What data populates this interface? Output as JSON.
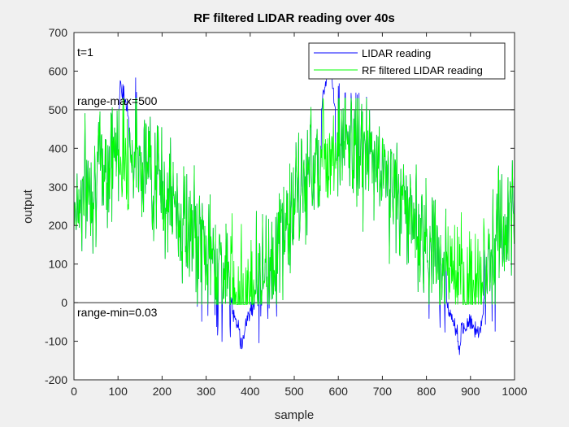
{
  "chart_data": {
    "type": "line",
    "title": "RF filtered LIDAR reading over 40s",
    "xlabel": "sample",
    "ylabel": "output",
    "xlim": [
      0,
      1000
    ],
    "ylim": [
      -200,
      700
    ],
    "xticks": [
      0,
      100,
      200,
      300,
      400,
      500,
      600,
      700,
      800,
      900,
      1000
    ],
    "yticks": [
      -200,
      -100,
      0,
      100,
      200,
      300,
      400,
      500,
      600,
      700
    ],
    "grid": false,
    "legend_position": "top-right",
    "annotations": {
      "time": "t=1",
      "range_max": "range-max=500",
      "range_min": "range-min=0.03"
    },
    "reference_lines": [
      500,
      0
    ],
    "series": [
      {
        "name": "LIDAR reading",
        "color": "#0000ff",
        "x": [
          0,
          50,
          100,
          105,
          110,
          150,
          200,
          250,
          300,
          340,
          360,
          375,
          380,
          390,
          400,
          450,
          500,
          550,
          575,
          580,
          600,
          650,
          700,
          750,
          800,
          830,
          850,
          870,
          875,
          880,
          900,
          920,
          950,
          1000
        ],
        "values": [
          250,
          330,
          410,
          585,
          545,
          420,
          300,
          200,
          120,
          60,
          -20,
          -60,
          -120,
          -50,
          -20,
          90,
          250,
          410,
          600,
          630,
          440,
          400,
          350,
          250,
          150,
          70,
          -20,
          -80,
          -145,
          -70,
          -50,
          -80,
          130,
          230
        ]
      },
      {
        "name": "RF filtered LIDAR reading",
        "color": "#00ff00",
        "x": [
          0,
          50,
          100,
          150,
          200,
          250,
          300,
          350,
          380,
          400,
          450,
          500,
          550,
          600,
          650,
          700,
          750,
          800,
          850,
          880,
          900,
          950,
          1000
        ],
        "values": [
          250,
          330,
          400,
          390,
          300,
          200,
          130,
          60,
          20,
          40,
          110,
          250,
          380,
          420,
          400,
          340,
          250,
          160,
          90,
          20,
          40,
          130,
          240
        ]
      }
    ]
  }
}
